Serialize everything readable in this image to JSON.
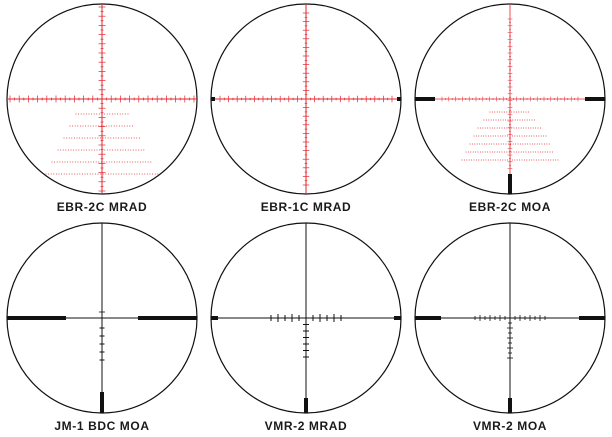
{
  "colors": {
    "outline": "#111111",
    "reticle_red": "#e0262e",
    "reticle_black": "#111111"
  },
  "reticles": [
    {
      "name": "EBR-2C MRAD",
      "color": "red",
      "style": "ebr2c-mrad"
    },
    {
      "name": "EBR-1C MRAD",
      "color": "red",
      "style": "ebr1c-mrad"
    },
    {
      "name": "EBR-2C MOA",
      "color": "red",
      "style": "ebr2c-moa"
    },
    {
      "name": "JM-1 BDC MOA",
      "color": "black",
      "style": "jm1-bdc-moa"
    },
    {
      "name": "VMR-2 MRAD",
      "color": "black",
      "style": "vmr2-mrad"
    },
    {
      "name": "VMR-2 MOA",
      "color": "black",
      "style": "vmr2-moa"
    }
  ]
}
